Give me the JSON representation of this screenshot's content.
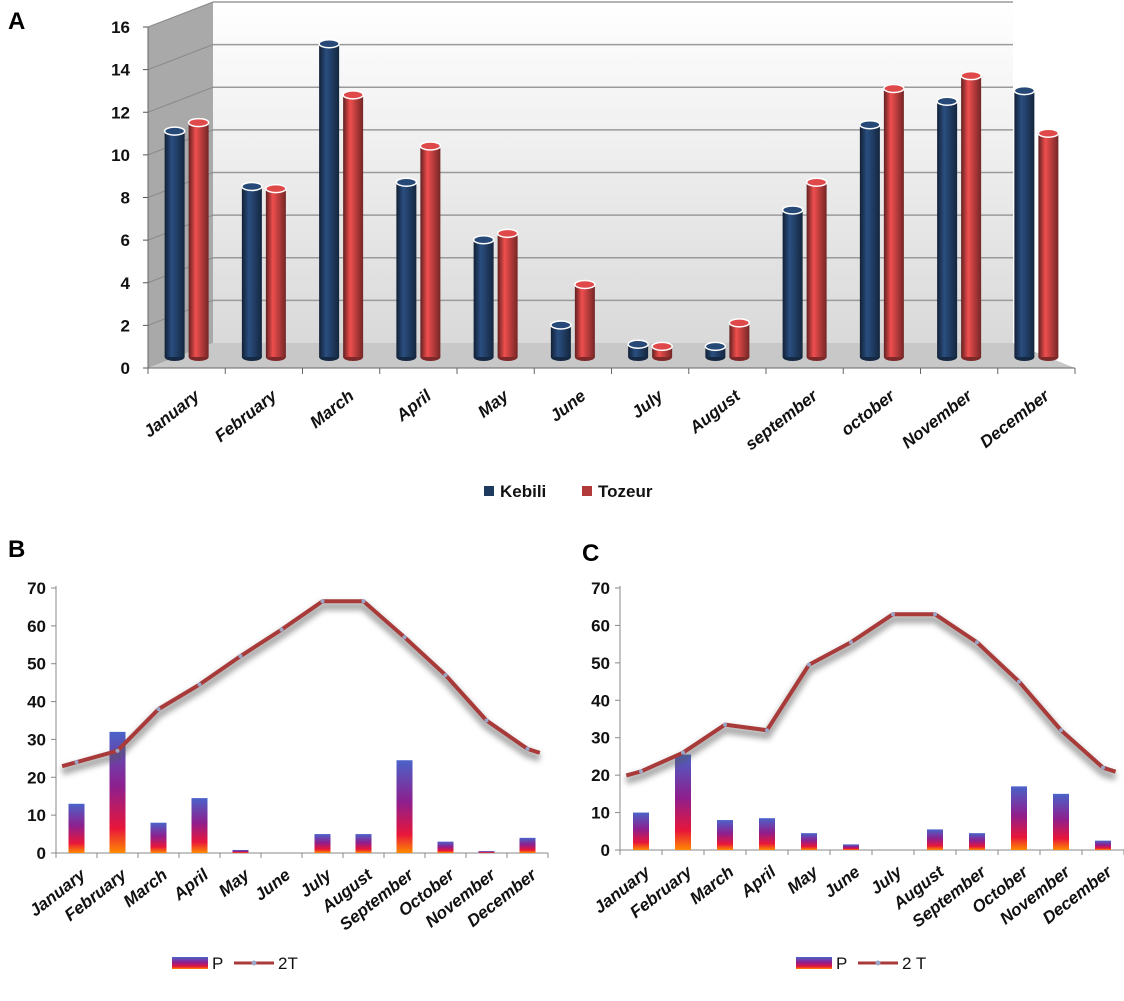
{
  "panels": {
    "a": {
      "label": "A"
    },
    "b": {
      "label": "B"
    },
    "c": {
      "label": "C"
    }
  },
  "chart_data": [
    {
      "id": "A",
      "type": "bar",
      "categories": [
        "January",
        "February",
        "March",
        "April",
        "May",
        "June",
        "July",
        "August",
        "september",
        "october",
        "November",
        "December"
      ],
      "series": [
        {
          "name": "Kebili",
          "color": "#1f3a5f",
          "values": [
            10.6,
            8.0,
            14.7,
            8.2,
            5.5,
            1.5,
            0.6,
            0.5,
            6.9,
            10.9,
            12.0,
            12.5
          ]
        },
        {
          "name": "Tozeur",
          "color": "#b23a3a",
          "values": [
            11.0,
            7.9,
            12.3,
            9.9,
            5.8,
            3.4,
            0.5,
            1.6,
            8.2,
            12.6,
            13.2,
            10.5
          ]
        }
      ],
      "ylim": [
        0,
        16
      ],
      "yticks": [
        0,
        2,
        4,
        6,
        8,
        10,
        12,
        14,
        16
      ],
      "legend_position": "bottom",
      "grid": true
    },
    {
      "id": "B",
      "type": "bar+line",
      "categories": [
        "January",
        "February",
        "March",
        "April",
        "May",
        "June",
        "July",
        "August",
        "September",
        "October",
        "November",
        "December"
      ],
      "series": [
        {
          "name": "P",
          "type": "bar",
          "values": [
            13,
            32,
            8,
            14.5,
            0.8,
            0,
            5,
            5,
            24.5,
            3,
            0.5,
            4
          ]
        },
        {
          "name": "2T",
          "type": "line",
          "color": "#a83a3a",
          "values": [
            24,
            27,
            38,
            44.5,
            52,
            59,
            66.5,
            66.5,
            57,
            47,
            35,
            27.5
          ]
        }
      ],
      "ylim": [
        0,
        70
      ],
      "yticks": [
        0,
        10,
        20,
        30,
        40,
        50,
        60,
        70
      ],
      "legend_position": "bottom-left"
    },
    {
      "id": "C",
      "type": "bar+line",
      "categories": [
        "January",
        "February",
        "March",
        "April",
        "May",
        "June",
        "July",
        "August",
        "September",
        "October",
        "November",
        "December"
      ],
      "series": [
        {
          "name": "P",
          "type": "bar",
          "values": [
            10,
            25.5,
            8,
            8.5,
            4.5,
            1.5,
            0,
            5.5,
            4.5,
            17,
            15,
            2.5
          ]
        },
        {
          "name": "2 T",
          "type": "line",
          "color": "#a83a3a",
          "values": [
            21,
            26,
            33.5,
            32,
            49.5,
            55.5,
            63,
            63,
            55.5,
            45,
            32,
            22
          ]
        }
      ],
      "ylim": [
        0,
        70
      ],
      "yticks": [
        0,
        10,
        20,
        30,
        40,
        50,
        60,
        70
      ],
      "legend_position": "bottom-center"
    }
  ]
}
